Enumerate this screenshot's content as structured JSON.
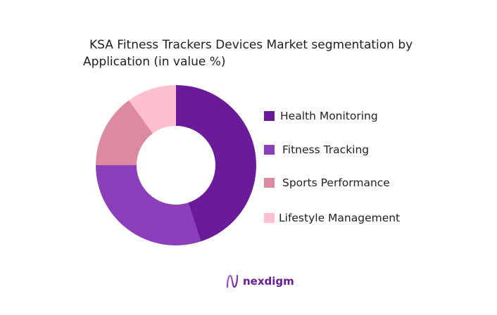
{
  "title": {
    "line1": "KSA Fitness Trackers Devices Market segmentation by",
    "line2": "Application (in value %)"
  },
  "chart_data": {
    "type": "pie",
    "donut": true,
    "title": "KSA Fitness Trackers Devices Market segmentation by Application (in value %)",
    "categories": [
      "Health Monitoring",
      "Fitness Tracking",
      "Sports Performance",
      "Lifestyle Management"
    ],
    "values": [
      45,
      30,
      15,
      10
    ],
    "colors": [
      "#6a1b9a",
      "#8b3fbb",
      "#dc8a9f",
      "#ffbfd0"
    ],
    "legend_position": "right",
    "start_angle": "12 o'clock, clockwise"
  },
  "legend": {
    "items": [
      {
        "label": "Health Monitoring",
        "color": "#6a1b9a"
      },
      {
        "label": "Fitness Tracking",
        "color": "#8b3fbb"
      },
      {
        "label": "Sports Performance",
        "color": "#dc8a9f"
      },
      {
        "label": "Lifestyle Management",
        "color": "#ffbfd0"
      }
    ]
  },
  "brand": {
    "name": "nexdigm",
    "logo_icon": "nexdigm-wave-logo-icon"
  }
}
